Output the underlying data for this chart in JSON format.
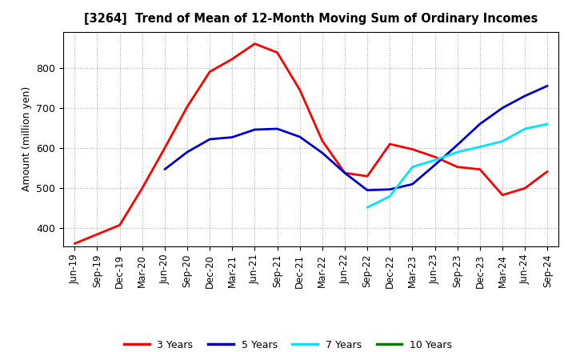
{
  "title": "[3264]  Trend of Mean of 12-Month Moving Sum of Ordinary Incomes",
  "ylabel": "Amount (million yen)",
  "x_labels": [
    "Jun-19",
    "Sep-19",
    "Dec-19",
    "Mar-20",
    "Jun-20",
    "Sep-20",
    "Dec-20",
    "Mar-21",
    "Jun-21",
    "Sep-21",
    "Dec-21",
    "Mar-22",
    "Jun-22",
    "Sep-22",
    "Dec-22",
    "Mar-23",
    "Jun-23",
    "Sep-23",
    "Dec-23",
    "Mar-24",
    "Jun-24",
    "Sep-24"
  ],
  "ylim": [
    355,
    890
  ],
  "yticks": [
    400,
    500,
    600,
    700,
    800
  ],
  "series": {
    "3 Years": {
      "color": "#ff0000",
      "data": [
        [
          0,
          362
        ],
        [
          1,
          385
        ],
        [
          2,
          408
        ],
        [
          3,
          500
        ],
        [
          4,
          600
        ],
        [
          5,
          703
        ],
        [
          6,
          790
        ],
        [
          7,
          822
        ],
        [
          8,
          860
        ],
        [
          9,
          838
        ],
        [
          10,
          745
        ],
        [
          11,
          618
        ],
        [
          12,
          538
        ],
        [
          13,
          530
        ],
        [
          14,
          610
        ],
        [
          15,
          597
        ],
        [
          16,
          578
        ],
        [
          17,
          553
        ],
        [
          18,
          547
        ],
        [
          19,
          483
        ],
        [
          20,
          500
        ],
        [
          21,
          542
        ]
      ]
    },
    "5 Years": {
      "color": "#0000cd",
      "data": [
        [
          4,
          547
        ],
        [
          5,
          590
        ],
        [
          6,
          622
        ],
        [
          7,
          627
        ],
        [
          8,
          646
        ],
        [
          9,
          648
        ],
        [
          10,
          628
        ],
        [
          11,
          588
        ],
        [
          12,
          538
        ],
        [
          13,
          495
        ],
        [
          14,
          497
        ],
        [
          15,
          510
        ],
        [
          16,
          558
        ],
        [
          17,
          608
        ],
        [
          18,
          660
        ],
        [
          19,
          700
        ],
        [
          20,
          730
        ],
        [
          21,
          755
        ]
      ]
    },
    "7 Years": {
      "color": "#00e5ff",
      "data": [
        [
          13,
          452
        ],
        [
          14,
          480
        ],
        [
          15,
          553
        ],
        [
          16,
          570
        ],
        [
          17,
          590
        ],
        [
          18,
          603
        ],
        [
          19,
          617
        ],
        [
          20,
          648
        ],
        [
          21,
          660
        ]
      ]
    },
    "10 Years": {
      "color": "#008000",
      "data": []
    }
  },
  "legend_labels": [
    "3 Years",
    "5 Years",
    "7 Years",
    "10 Years"
  ],
  "legend_colors": [
    "#ff0000",
    "#0000cd",
    "#00e5ff",
    "#008000"
  ],
  "background_color": "#ffffff",
  "grid_color": "#aaaaaa",
  "linewidth": 2.0
}
